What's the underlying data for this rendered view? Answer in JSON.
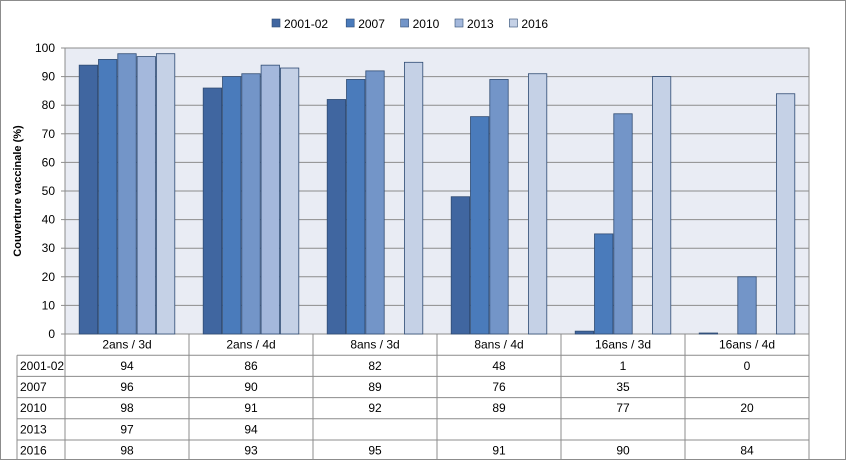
{
  "chart_data": {
    "type": "bar",
    "title": "",
    "ylabel": "Couverture vaccinale  (%)",
    "ylim": [
      0,
      100
    ],
    "yticks": [
      0,
      10,
      20,
      30,
      40,
      50,
      60,
      70,
      80,
      90,
      100
    ],
    "grid": true,
    "legend_position": "top",
    "categories": [
      "2ans / 3d",
      "2ans / 4d",
      "8ans / 3d",
      "8ans / 4d",
      "16ans / 3d",
      "16ans / 4d"
    ],
    "series": [
      {
        "name": "2001-02",
        "color": "#4066A0",
        "values": [
          94,
          86,
          82,
          48,
          1,
          0
        ]
      },
      {
        "name": "2007",
        "color": "#4A7BBB",
        "values": [
          96,
          90,
          89,
          76,
          35,
          null
        ]
      },
      {
        "name": "2010",
        "color": "#7395C8",
        "values": [
          98,
          91,
          92,
          89,
          77,
          20
        ]
      },
      {
        "name": "2013",
        "color": "#A4B8DC",
        "values": [
          97,
          94,
          null,
          null,
          null,
          null
        ]
      },
      {
        "name": "2016",
        "color": "#C5D1E6",
        "values": [
          98,
          93,
          95,
          91,
          90,
          84
        ]
      }
    ],
    "table": {
      "row_labels": [
        "2001-02",
        "2007",
        "2010",
        "2013",
        "2016"
      ],
      "rows": [
        [
          "94",
          "86",
          "82",
          "48",
          "1",
          "0"
        ],
        [
          "96",
          "90",
          "89",
          "76",
          "35",
          ""
        ],
        [
          "98",
          "91",
          "92",
          "89",
          "77",
          "20"
        ],
        [
          "97",
          "94",
          "",
          "",
          "",
          ""
        ],
        [
          "98",
          "93",
          "95",
          "91",
          "90",
          "84"
        ]
      ]
    }
  }
}
